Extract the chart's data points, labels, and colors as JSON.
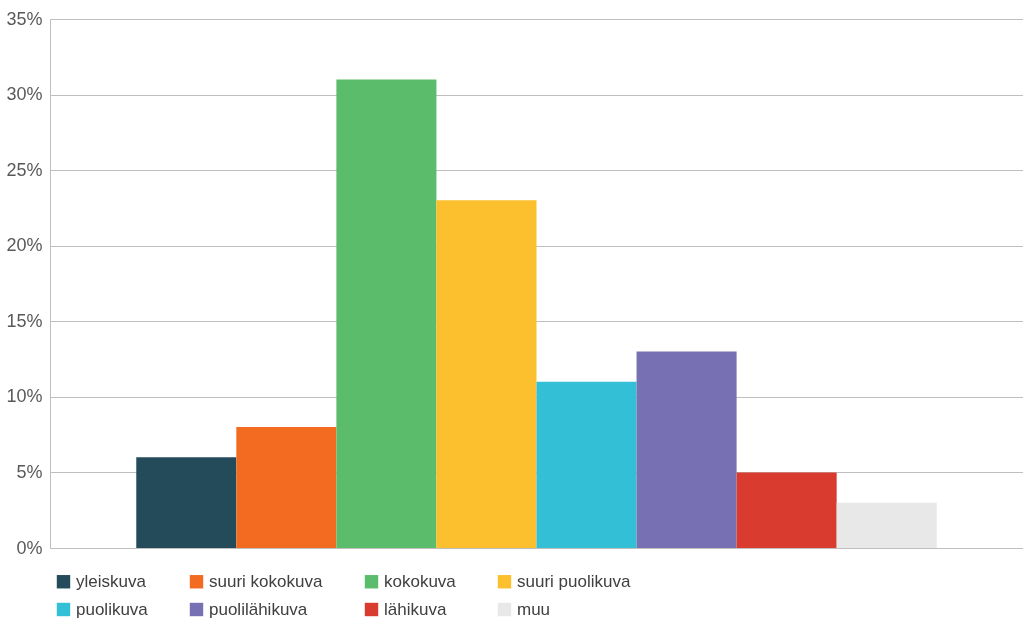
{
  "chart_data": {
    "type": "bar",
    "categories": [
      null
    ],
    "series": [
      {
        "name": "yleiskuva",
        "color": "#234b5a",
        "values": [
          6
        ]
      },
      {
        "name": "suuri kokokuva",
        "color": "#f26b21",
        "values": [
          8
        ]
      },
      {
        "name": "kokokuva",
        "color": "#5bbd6b",
        "values": [
          31
        ]
      },
      {
        "name": "suuri puolikuva",
        "color": "#fcc02e",
        "values": [
          23
        ]
      },
      {
        "name": "puolikuva",
        "color": "#33c0d6",
        "values": [
          11
        ]
      },
      {
        "name": "puolilähikuva",
        "color": "#7771b4",
        "values": [
          13
        ]
      },
      {
        "name": "lähikuva",
        "color": "#d93c2f",
        "values": [
          5
        ]
      },
      {
        "name": "muu",
        "color": "#e8e8e8",
        "values": [
          3
        ]
      }
    ],
    "ylim": [
      0,
      35
    ],
    "yticks": [
      {
        "value": 0,
        "label": "0%"
      },
      {
        "value": 5,
        "label": "5%"
      },
      {
        "value": 10,
        "label": "10%"
      },
      {
        "value": 15,
        "label": "15%"
      },
      {
        "value": 20,
        "label": "20%"
      },
      {
        "value": 25,
        "label": "25%"
      },
      {
        "value": 30,
        "label": "30%"
      },
      {
        "value": 35,
        "label": "35%"
      }
    ],
    "grid": "y",
    "legend": "bottom"
  }
}
